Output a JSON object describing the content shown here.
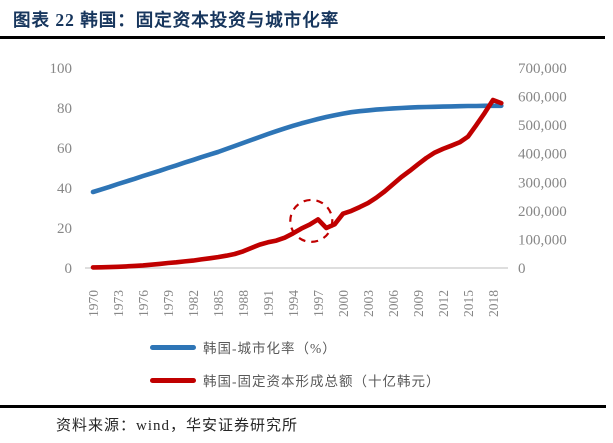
{
  "header": {
    "title": "图表 22 韩国：固定资本投资与城市化率"
  },
  "source": {
    "text": "资料来源：wind，华安证券研究所"
  },
  "chart_data": {
    "type": "line",
    "x": [
      1970,
      1971,
      1972,
      1973,
      1974,
      1975,
      1976,
      1977,
      1978,
      1979,
      1980,
      1981,
      1982,
      1983,
      1984,
      1985,
      1986,
      1987,
      1988,
      1989,
      1990,
      1991,
      1992,
      1993,
      1994,
      1995,
      1996,
      1997,
      1998,
      1999,
      2000,
      2001,
      2002,
      2003,
      2004,
      2005,
      2006,
      2007,
      2008,
      2009,
      2010,
      2011,
      2012,
      2013,
      2014,
      2015,
      2016,
      2017,
      2018,
      2019
    ],
    "x_tick_labels": [
      "1970",
      "1973",
      "1976",
      "1979",
      "1982",
      "1985",
      "1988",
      "1991",
      "1994",
      "1997",
      "2000",
      "2003",
      "2006",
      "2009",
      "2012",
      "2015",
      "2018"
    ],
    "left_axis": {
      "min": 0,
      "max": 100,
      "ticks": [
        0,
        20,
        40,
        60,
        80,
        100
      ]
    },
    "right_axis": {
      "min": 0,
      "max": 700000,
      "tick_step": 100000,
      "tick_labels": [
        "0",
        "100,000",
        "200,000",
        "300,000",
        "400,000",
        "500,000",
        "600,000",
        "700,000"
      ]
    },
    "series": [
      {
        "id": "urbanization-rate",
        "name": "韩国-城市化率（%）",
        "axis": "left",
        "color": "#2E75B6",
        "values": [
          38.0,
          39.3,
          40.6,
          42.0,
          43.3,
          44.6,
          46.0,
          47.3,
          48.6,
          50.0,
          51.3,
          52.7,
          54.0,
          55.4,
          56.7,
          58.0,
          59.5,
          61.0,
          62.5,
          64.0,
          65.5,
          67.0,
          68.4,
          69.8,
          71.1,
          72.3,
          73.4,
          74.5,
          75.5,
          76.4,
          77.2,
          77.9,
          78.4,
          78.8,
          79.2,
          79.5,
          79.8,
          80.0,
          80.2,
          80.4,
          80.5,
          80.6,
          80.7,
          80.8,
          80.9,
          81.0,
          81.0,
          81.1,
          81.1,
          81.1
        ]
      },
      {
        "id": "fixed-capital-formation",
        "name": "韩国-固定资本形成总额（十亿韩元）",
        "axis": "right",
        "color": "#C00000",
        "values": [
          2000,
          2500,
          3200,
          4200,
          5600,
          7200,
          9200,
          11600,
          14500,
          17500,
          20000,
          23000,
          26000,
          30000,
          34000,
          38000,
          43000,
          49000,
          58000,
          70000,
          82000,
          90000,
          96000,
          106000,
          121000,
          138000,
          152000,
          170000,
          140000,
          153000,
          190000,
          200000,
          213000,
          227000,
          246000,
          268000,
          293000,
          318000,
          340000,
          363000,
          385000,
          404000,
          417000,
          428000,
          440000,
          460000,
          500000,
          543000,
          588000,
          577000
        ]
      }
    ],
    "annotation": {
      "shape": "dashed-circle",
      "year": 1996.2,
      "value": 165000,
      "radius": 21,
      "color": "#C00000"
    },
    "legend_position": "bottom",
    "grid": false
  }
}
